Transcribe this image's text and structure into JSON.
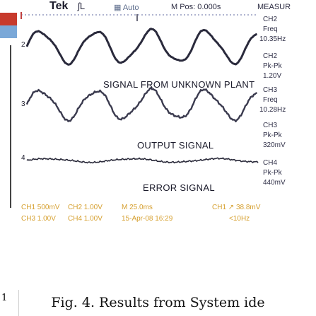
{
  "figure_number": "1",
  "topbar": {
    "brand": "Tek",
    "trigger_state": "ʃL",
    "acq_mode": "Auto",
    "mpos": "M Pos: 0.000s",
    "measure_header": "MEASUR"
  },
  "measurements": [
    {
      "channel": "CH2",
      "type": "Freq",
      "value": "10.35Hz"
    },
    {
      "channel": "CH2",
      "type": "Pk-Pk",
      "value": "1.20V"
    },
    {
      "channel": "CH3",
      "type": "Freq",
      "value": "10.28Hz"
    },
    {
      "channel": "CH3",
      "type": "Pk-Pk",
      "value": "320mV"
    },
    {
      "channel": "CH4",
      "type": "Pk-Pk",
      "value": "440mV"
    }
  ],
  "signals": {
    "plant": "SIGNAL FROM UNKNOWN PLANT",
    "output": "OUTPUT SIGNAL",
    "error": "ERROR SIGNAL"
  },
  "channel_markers": {
    "ch2": "2",
    "ch3": "3",
    "ch4": "4"
  },
  "status": {
    "ch1_scale": "CH1  500mV",
    "ch2_scale": "CH2  1.00V",
    "time_scale": "M 25.0ms",
    "trigger": "CH1 ↗ 38.8mV",
    "ch3_scale": "CH3  1.00V",
    "ch4_scale": "CH4  1.00V",
    "date": "15-Apr-08 16:29",
    "trig_freq": "<10Hz"
  },
  "caption": "Fig. 4.  Results from System ide",
  "colors": {
    "ch2_trace": "#2a2a3c",
    "ch3_trace": "#3a3a4e",
    "ch4_trace": "#2a2a3a",
    "status_text": "#d6a030",
    "grid_dots": "#b0b4d0"
  }
}
